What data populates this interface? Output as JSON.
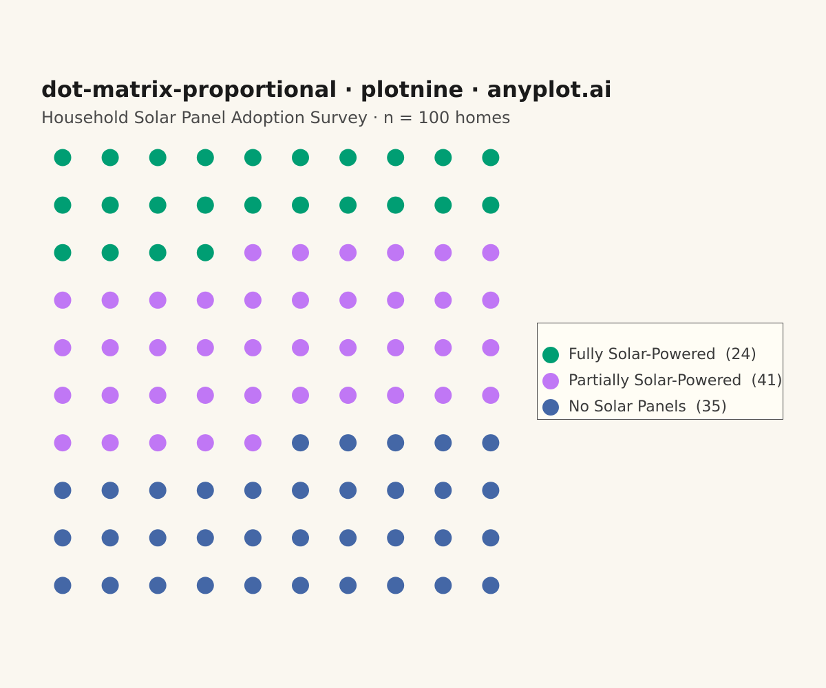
{
  "title": "dot-matrix-proportional · plotnine · anyplot.ai",
  "subtitle": "Household Solar Panel Adoption Survey  ·  n = 100 homes",
  "chart_data": {
    "type": "scatter",
    "grid": "off",
    "rows": 10,
    "columns": 10,
    "fill_order": "left-to-right, top-to-bottom",
    "total": 100,
    "legend_placement": "right",
    "categories": [
      "Fully Solar-Powered",
      "Partially Solar-Powered",
      "No Solar Panels"
    ],
    "series": [
      {
        "name": "Fully Solar-Powered",
        "count": 24,
        "count_label": "(24)",
        "color": "#009E73"
      },
      {
        "name": "Partially Solar-Powered",
        "count": 41,
        "count_label": "(41)",
        "color": "#C077F5"
      },
      {
        "name": "No Solar Panels",
        "count": 35,
        "count_label": "(35)",
        "color": "#4467A6"
      }
    ]
  }
}
